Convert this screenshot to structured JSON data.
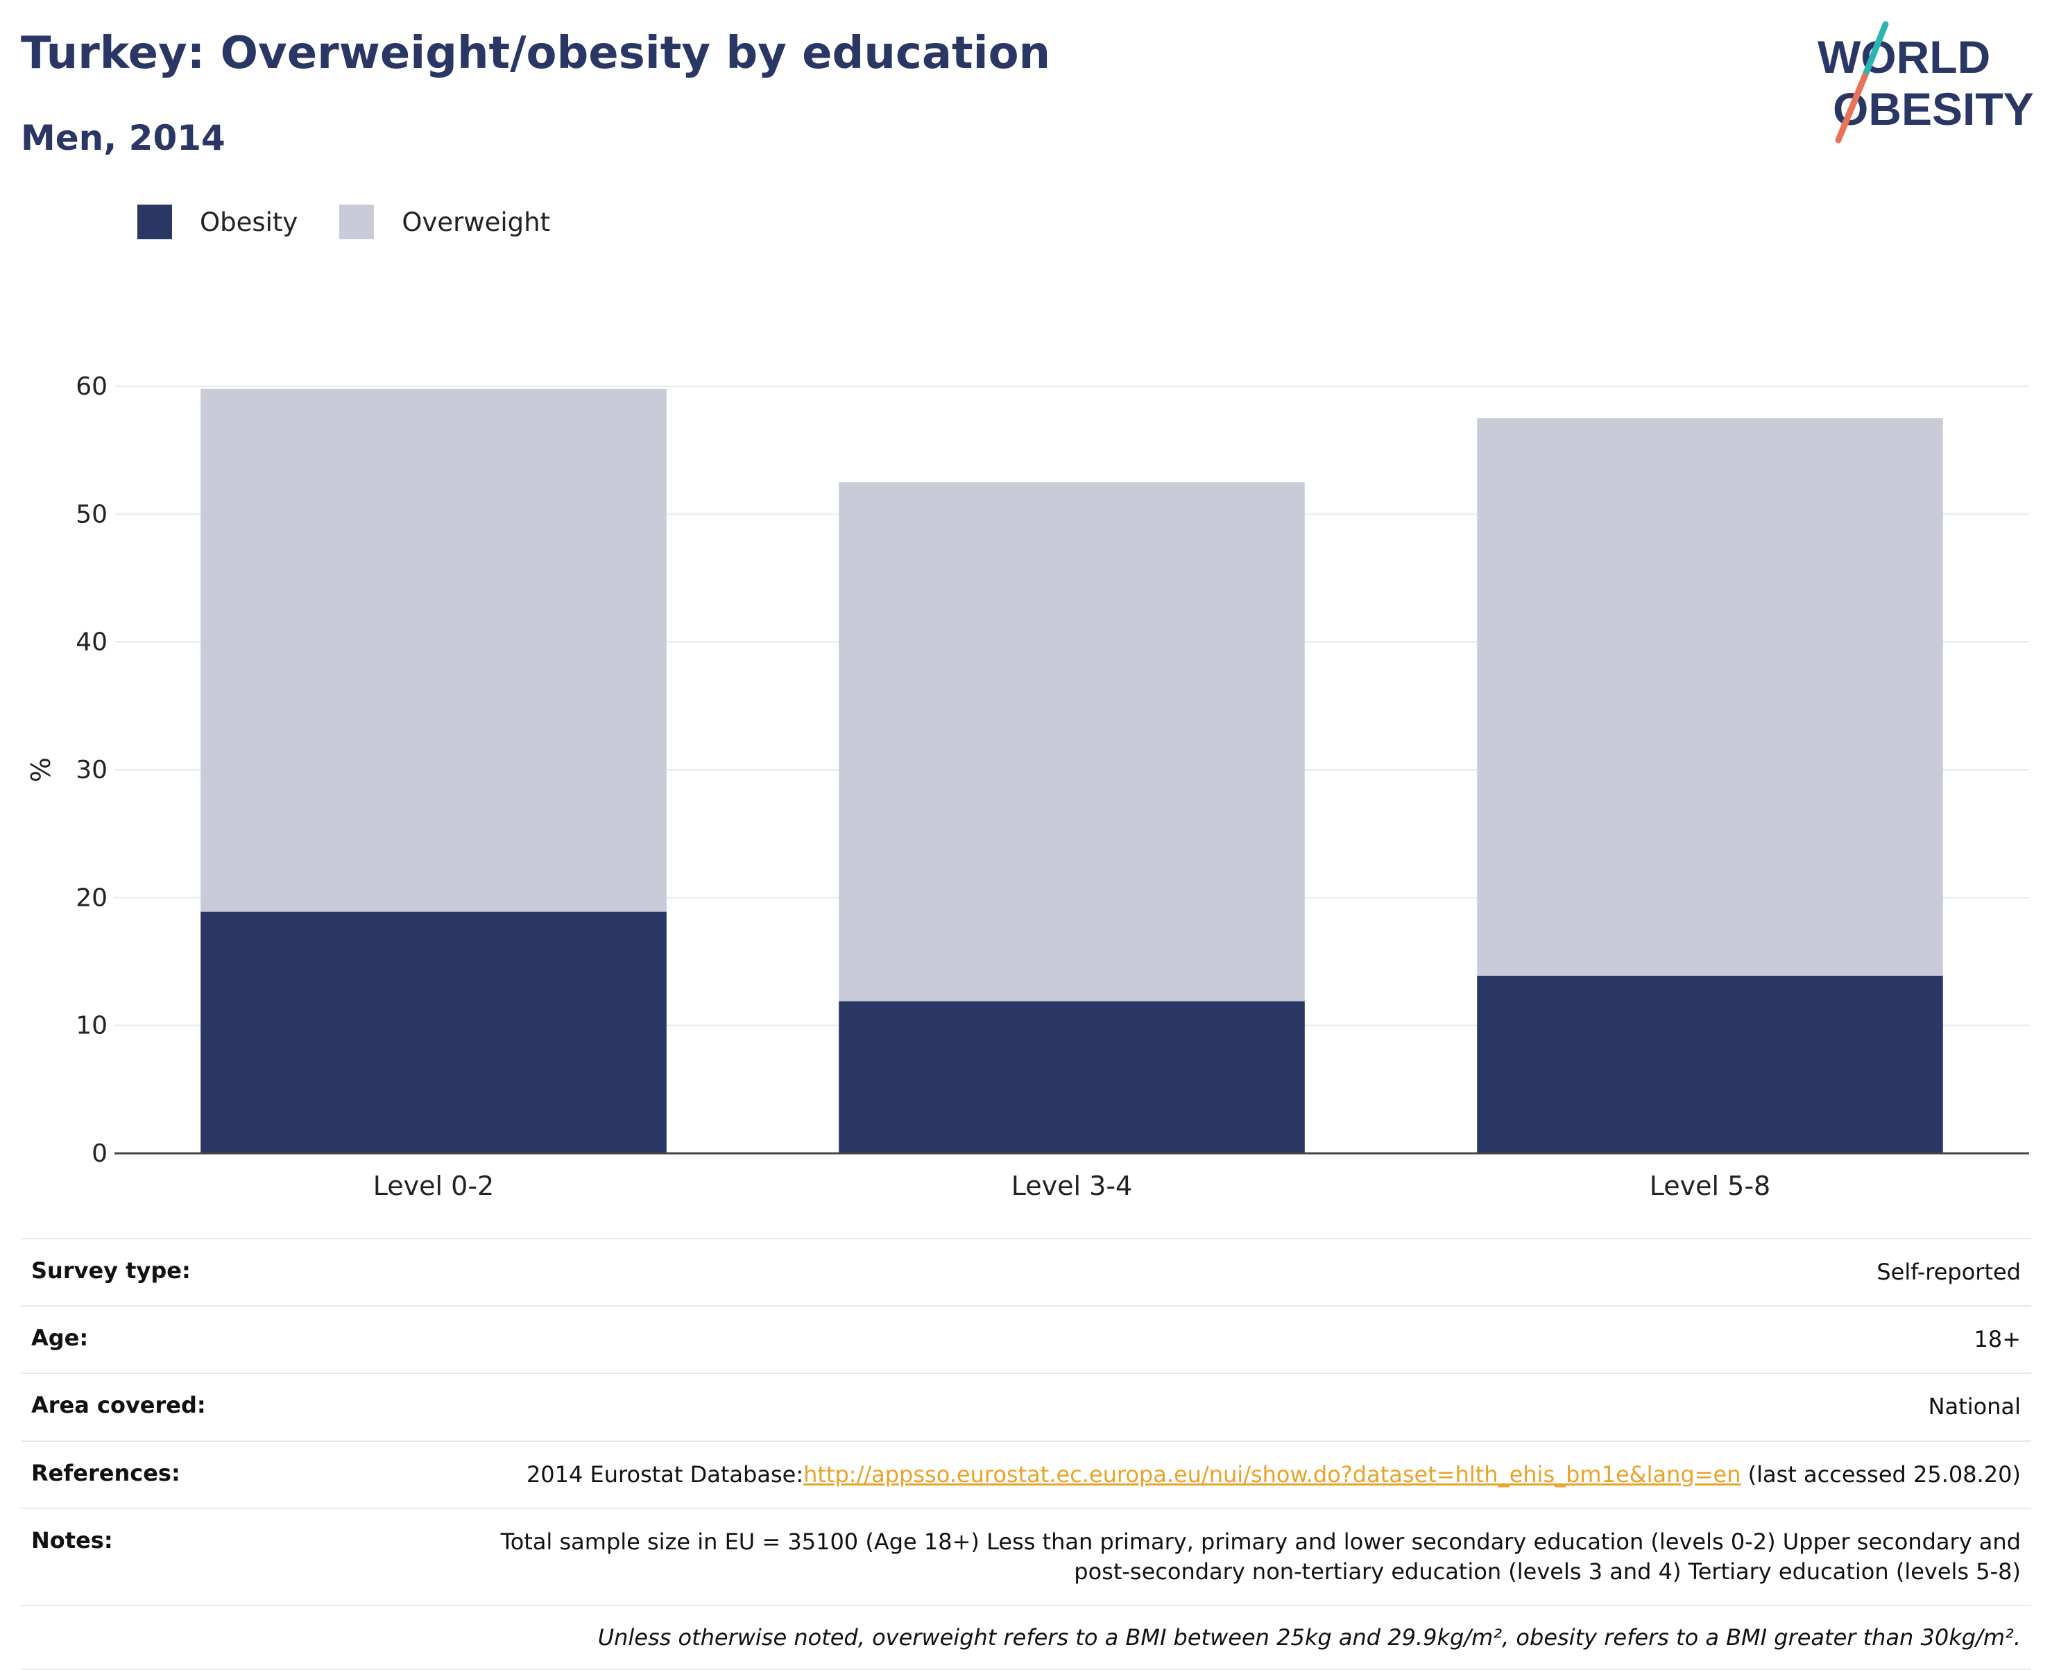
{
  "header": {
    "title": "Turkey: Overweight/obesity by education",
    "subtitle": "Men, 2014"
  },
  "logo": {
    "line1": "WORLD",
    "line2": "OBESITY",
    "accent_top": "#2bb5b0",
    "accent_bottom": "#e8735a"
  },
  "chart_data": {
    "type": "bar",
    "stacked": true,
    "categories": [
      "Level 0-2",
      "Level 3-4",
      "Level 5-8"
    ],
    "series": [
      {
        "name": "Obesity",
        "values": [
          18.9,
          11.9,
          13.9
        ],
        "color": "#2a3663"
      },
      {
        "name": "Overweight",
        "values": [
          40.9,
          40.6,
          43.6
        ],
        "color": "#c9ccd8"
      }
    ],
    "title": "",
    "xlabel": "",
    "ylabel": "%",
    "ylim": [
      0,
      60
    ],
    "yticks": [
      0,
      10,
      20,
      30,
      40,
      50,
      60
    ],
    "grid": true,
    "legend": "top-left"
  },
  "info": {
    "rows": [
      {
        "label": "Survey type:",
        "value": "Self-reported"
      },
      {
        "label": "Age:",
        "value": "18+"
      },
      {
        "label": "Area covered:",
        "value": "National"
      }
    ],
    "references": {
      "label": "References:",
      "prefix": "2014 Eurostat Database:",
      "link": "http://appsso.eurostat.ec.europa.eu/nui/show.do?dataset=hlth_ehis_bm1e&lang=en",
      "suffix": " (last accessed 25.08.20)"
    },
    "notes": {
      "label": "Notes:",
      "line1": "Total sample size in EU = 35100 (Age 18+) Less than primary, primary and lower secondary education (levels 0-2) Upper secondary and",
      "line2": "post-secondary non-tertiary education (levels 3 and 4) Tertiary education (levels 5-8)"
    },
    "footnote": "Unless otherwise noted, overweight refers to a BMI between 25kg and 29.9kg/m², obesity refers to a BMI greater than 30kg/m²."
  }
}
